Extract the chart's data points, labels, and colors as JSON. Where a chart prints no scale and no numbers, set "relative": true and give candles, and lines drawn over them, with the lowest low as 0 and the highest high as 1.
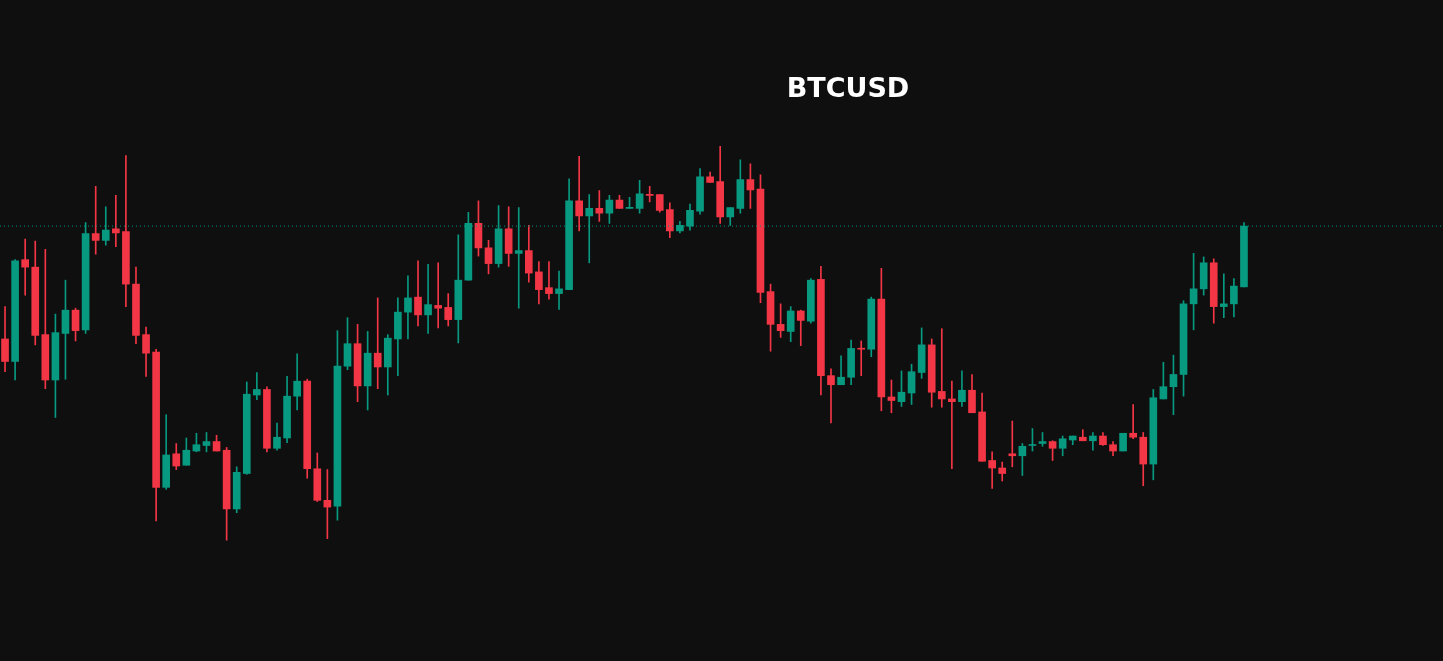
{
  "chart_data": {
    "type": "candlestick",
    "title": "BTCUSD",
    "relative": true,
    "grid": false,
    "legend": false,
    "categories": [
      null,
      null,
      null,
      null,
      null,
      null,
      null,
      null,
      null,
      null,
      null,
      null,
      null,
      null,
      null,
      null,
      null,
      null,
      null,
      null,
      null,
      null,
      null,
      null,
      null,
      null,
      null,
      null,
      null,
      null,
      null,
      null,
      null,
      null,
      null,
      null,
      null,
      null,
      null,
      null,
      null,
      null,
      null,
      null,
      null,
      null,
      null,
      null,
      null,
      null,
      null,
      null,
      null,
      null,
      null,
      null,
      null,
      null,
      null,
      null,
      null,
      null,
      null,
      null,
      null,
      null,
      null,
      null,
      null,
      null,
      null,
      null,
      null,
      null,
      null,
      null,
      null,
      null,
      null,
      null,
      null,
      null,
      null,
      null,
      null,
      null,
      null,
      null,
      null,
      null,
      null,
      null,
      null,
      null,
      null,
      null,
      null,
      null,
      null,
      null,
      null,
      null,
      null,
      null,
      null,
      null,
      null,
      null,
      null,
      null,
      null,
      null,
      null,
      null,
      null,
      null,
      null,
      null,
      null,
      null,
      null,
      null,
      null,
      null
    ],
    "ohlc": [
      [
        0.511,
        0.593,
        0.428,
        0.454
      ],
      [
        0.454,
        0.712,
        0.407,
        0.709
      ],
      [
        0.712,
        0.764,
        0.622,
        0.693
      ],
      [
        0.693,
        0.759,
        0.496,
        0.52
      ],
      [
        0.522,
        0.738,
        0.385,
        0.407
      ],
      [
        0.407,
        0.574,
        0.312,
        0.527
      ],
      [
        0.525,
        0.66,
        0.409,
        0.584
      ],
      [
        0.584,
        0.589,
        0.506,
        0.532
      ],
      [
        0.534,
        0.806,
        0.525,
        0.778
      ],
      [
        0.778,
        0.898,
        0.726,
        0.761
      ],
      [
        0.761,
        0.846,
        0.749,
        0.787
      ],
      [
        0.79,
        0.875,
        0.745,
        0.78
      ],
      [
        0.783,
        0.976,
        0.593,
        0.65
      ],
      [
        0.65,
        0.693,
        0.499,
        0.52
      ],
      [
        0.522,
        0.541,
        0.416,
        0.475
      ],
      [
        0.478,
        0.485,
        0.05,
        0.135
      ],
      [
        0.135,
        0.319,
        0.13,
        0.217
      ],
      [
        0.22,
        0.246,
        0.18,
        0.189
      ],
      [
        0.191,
        0.26,
        0.191,
        0.229
      ],
      [
        0.227,
        0.272,
        0.225,
        0.243
      ],
      [
        0.241,
        0.274,
        0.225,
        0.251
      ],
      [
        0.251,
        0.267,
        0.227,
        0.227
      ],
      [
        0.229,
        0.236,
        0,
        0.08
      ],
      [
        0.08,
        0.187,
        0.071,
        0.173
      ],
      [
        0.17,
        0.402,
        0.168,
        0.371
      ],
      [
        0.369,
        0.426,
        0.357,
        0.383
      ],
      [
        0.383,
        0.39,
        0.225,
        0.234
      ],
      [
        0.234,
        0.298,
        0.229,
        0.262
      ],
      [
        0.26,
        0.416,
        0.248,
        0.366
      ],
      [
        0.366,
        0.473,
        0.331,
        0.404
      ],
      [
        0.404,
        0.409,
        0.158,
        0.182
      ],
      [
        0.182,
        0.222,
        0.099,
        0.102
      ],
      [
        0.102,
        0.18,
        0.005,
        0.085
      ],
      [
        0.087,
        0.532,
        0.052,
        0.442
      ],
      [
        0.442,
        0.565,
        0.433,
        0.499
      ],
      [
        0.499,
        0.548,
        0.352,
        0.392
      ],
      [
        0.392,
        0.53,
        0.331,
        0.475
      ],
      [
        0.475,
        0.615,
        0.385,
        0.44
      ],
      [
        0.44,
        0.522,
        0.369,
        0.513
      ],
      [
        0.511,
        0.615,
        0.418,
        0.579
      ],
      [
        0.579,
        0.671,
        0.511,
        0.615
      ],
      [
        0.617,
        0.709,
        0.544,
        0.572
      ],
      [
        0.572,
        0.7,
        0.525,
        0.598
      ],
      [
        0.596,
        0.704,
        0.539,
        0.589
      ],
      [
        0.591,
        0.626,
        0.544,
        0.56
      ],
      [
        0.56,
        0.775,
        0.501,
        0.66
      ],
      [
        0.66,
        0.832,
        0.66,
        0.804
      ],
      [
        0.804,
        0.861,
        0.721,
        0.742
      ],
      [
        0.742,
        0.761,
        0.676,
        0.702
      ],
      [
        0.702,
        0.849,
        0.693,
        0.79
      ],
      [
        0.79,
        0.846,
        0.695,
        0.728
      ],
      [
        0.728,
        0.844,
        0.589,
        0.735
      ],
      [
        0.735,
        0.799,
        0.655,
        0.678
      ],
      [
        0.681,
        0.707,
        0.6,
        0.636
      ],
      [
        0.641,
        0.707,
        0.612,
        0.626
      ],
      [
        0.626,
        0.683,
        0.586,
        0.638
      ],
      [
        0.636,
        0.917,
        0.636,
        0.861
      ],
      [
        0.861,
        0.974,
        0.785,
        0.823
      ],
      [
        0.823,
        0.877,
        0.704,
        0.842
      ],
      [
        0.842,
        0.887,
        0.809,
        0.83
      ],
      [
        0.83,
        0.875,
        0.804,
        0.863
      ],
      [
        0.863,
        0.875,
        0.842,
        0.842
      ],
      [
        0.842,
        0.87,
        0.842,
        0.844
      ],
      [
        0.842,
        0.913,
        0.83,
        0.879
      ],
      [
        0.877,
        0.898,
        0.858,
        0.875
      ],
      [
        0.877,
        0.877,
        0.832,
        0.837
      ],
      [
        0.839,
        0.856,
        0.768,
        0.785
      ],
      [
        0.785,
        0.809,
        0.78,
        0.799
      ],
      [
        0.797,
        0.853,
        0.787,
        0.837
      ],
      [
        0.835,
        0.943,
        0.827,
        0.922
      ],
      [
        0.922,
        0.934,
        0.908,
        0.908
      ],
      [
        0.91,
        1,
        0.804,
        0.82
      ],
      [
        0.82,
        0.844,
        0.799,
        0.844
      ],
      [
        0.842,
        0.965,
        0.83,
        0.915
      ],
      [
        0.915,
        0.955,
        0.842,
        0.889
      ],
      [
        0.891,
        0.927,
        0.603,
        0.629
      ],
      [
        0.631,
        0.65,
        0.48,
        0.548
      ],
      [
        0.548,
        0.6,
        0.515,
        0.532
      ],
      [
        0.53,
        0.593,
        0.504,
        0.582
      ],
      [
        0.582,
        0.584,
        0.494,
        0.558
      ],
      [
        0.556,
        0.664,
        0.551,
        0.66
      ],
      [
        0.662,
        0.695,
        0.369,
        0.418
      ],
      [
        0.418,
        0.435,
        0.298,
        0.395
      ],
      [
        0.395,
        0.468,
        0.395,
        0.414
      ],
      [
        0.414,
        0.508,
        0.395,
        0.487
      ],
      [
        0.487,
        0.506,
        0.418,
        0.485
      ],
      [
        0.485,
        0.617,
        0.466,
        0.612
      ],
      [
        0.612,
        0.69,
        0.329,
        0.364
      ],
      [
        0.364,
        0.407,
        0.324,
        0.355
      ],
      [
        0.352,
        0.43,
        0.34,
        0.376
      ],
      [
        0.374,
        0.447,
        0.345,
        0.428
      ],
      [
        0.426,
        0.539,
        0.411,
        0.496
      ],
      [
        0.496,
        0.511,
        0.338,
        0.376
      ],
      [
        0.378,
        0.537,
        0.338,
        0.359
      ],
      [
        0.359,
        0.404,
        0.182,
        0.352
      ],
      [
        0.352,
        0.43,
        0.34,
        0.381
      ],
      [
        0.381,
        0.421,
        0.324,
        0.324
      ],
      [
        0.326,
        0.374,
        0.201,
        0.201
      ],
      [
        0.203,
        0.225,
        0.132,
        0.184
      ],
      [
        0.184,
        0.199,
        0.151,
        0.17
      ],
      [
        0.22,
        0.303,
        0.187,
        0.215
      ],
      [
        0.215,
        0.246,
        0.165,
        0.239
      ],
      [
        0.241,
        0.284,
        0.227,
        0.243
      ],
      [
        0.246,
        0.274,
        0.239,
        0.251
      ],
      [
        0.251,
        0.253,
        0.203,
        0.234
      ],
      [
        0.234,
        0.265,
        0.215,
        0.258
      ],
      [
        0.255,
        0.265,
        0.243,
        0.265
      ],
      [
        0.262,
        0.281,
        0.253,
        0.253
      ],
      [
        0.253,
        0.274,
        0.229,
        0.265
      ],
      [
        0.265,
        0.274,
        0.241,
        0.243
      ],
      [
        0.243,
        0.251,
        0.215,
        0.227
      ],
      [
        0.227,
        0.272,
        0.227,
        0.272
      ],
      [
        0.272,
        0.345,
        0.258,
        0.262
      ],
      [
        0.262,
        0.274,
        0.139,
        0.194
      ],
      [
        0.194,
        0.383,
        0.154,
        0.362
      ],
      [
        0.359,
        0.452,
        0.359,
        0.39
      ],
      [
        0.39,
        0.47,
        0.319,
        0.421
      ],
      [
        0.421,
        0.608,
        0.366,
        0.6
      ],
      [
        0.6,
        0.728,
        0.534,
        0.638
      ],
      [
        0.638,
        0.719,
        0.622,
        0.704
      ],
      [
        0.704,
        0.714,
        0.551,
        0.593
      ],
      [
        0.593,
        0.676,
        0.565,
        0.6
      ],
      [
        0.6,
        0.664,
        0.567,
        0.645
      ],
      [
        0.643,
        0.806,
        0.643,
        0.797
      ]
    ],
    "colors": [
      "#f23645",
      "#089981",
      "#f23645",
      "#f23645",
      "#f23645",
      "#089981",
      "#089981",
      "#f23645",
      "#089981",
      "#f23645",
      "#089981",
      "#f23645",
      "#f23645",
      "#f23645",
      "#f23645",
      "#f23645",
      "#089981",
      "#f23645",
      "#089981",
      "#089981",
      "#089981",
      "#f23645",
      "#f23645",
      "#089981",
      "#089981",
      "#089981",
      "#f23645",
      "#089981",
      "#089981",
      "#089981",
      "#f23645",
      "#f23645",
      "#f23645",
      "#089981",
      "#089981",
      "#f23645",
      "#089981",
      "#f23645",
      "#089981",
      "#089981",
      "#089981",
      "#f23645",
      "#089981",
      "#f23645",
      "#f23645",
      "#089981",
      "#089981",
      "#f23645",
      "#f23645",
      "#089981",
      "#f23645",
      "#089981",
      "#f23645",
      "#f23645",
      "#f23645",
      "#089981",
      "#089981",
      "#f23645",
      "#089981",
      "#f23645",
      "#089981",
      "#f23645",
      "#089981",
      "#089981",
      "#f23645",
      "#f23645",
      "#f23645",
      "#089981",
      "#089981",
      "#089981",
      "#f23645",
      "#f23645",
      "#089981",
      "#089981",
      "#f23645",
      "#f23645",
      "#f23645",
      "#f23645",
      "#089981",
      "#f23645",
      "#089981",
      "#f23645",
      "#f23645",
      "#089981",
      "#089981",
      "#f23645",
      "#089981",
      "#f23645",
      "#f23645",
      "#089981",
      "#089981",
      "#089981",
      "#f23645",
      "#f23645",
      "#f23645",
      "#089981",
      "#f23645",
      "#f23645",
      "#f23645",
      "#f23645",
      "#f23645",
      "#089981",
      "#089981",
      "#089981",
      "#f23645",
      "#089981",
      "#089981",
      "#f23645",
      "#089981",
      "#f23645",
      "#f23645",
      "#089981",
      "#f23645",
      "#f23645",
      "#089981",
      "#089981",
      "#089981",
      "#089981",
      "#089981",
      "#089981",
      "#f23645",
      "#089981",
      "#089981",
      "#089981"
    ],
    "ref_lines": [
      {
        "axis": "y",
        "value": 0.797,
        "color": "#089981",
        "line_style": "dotted"
      }
    ]
  }
}
